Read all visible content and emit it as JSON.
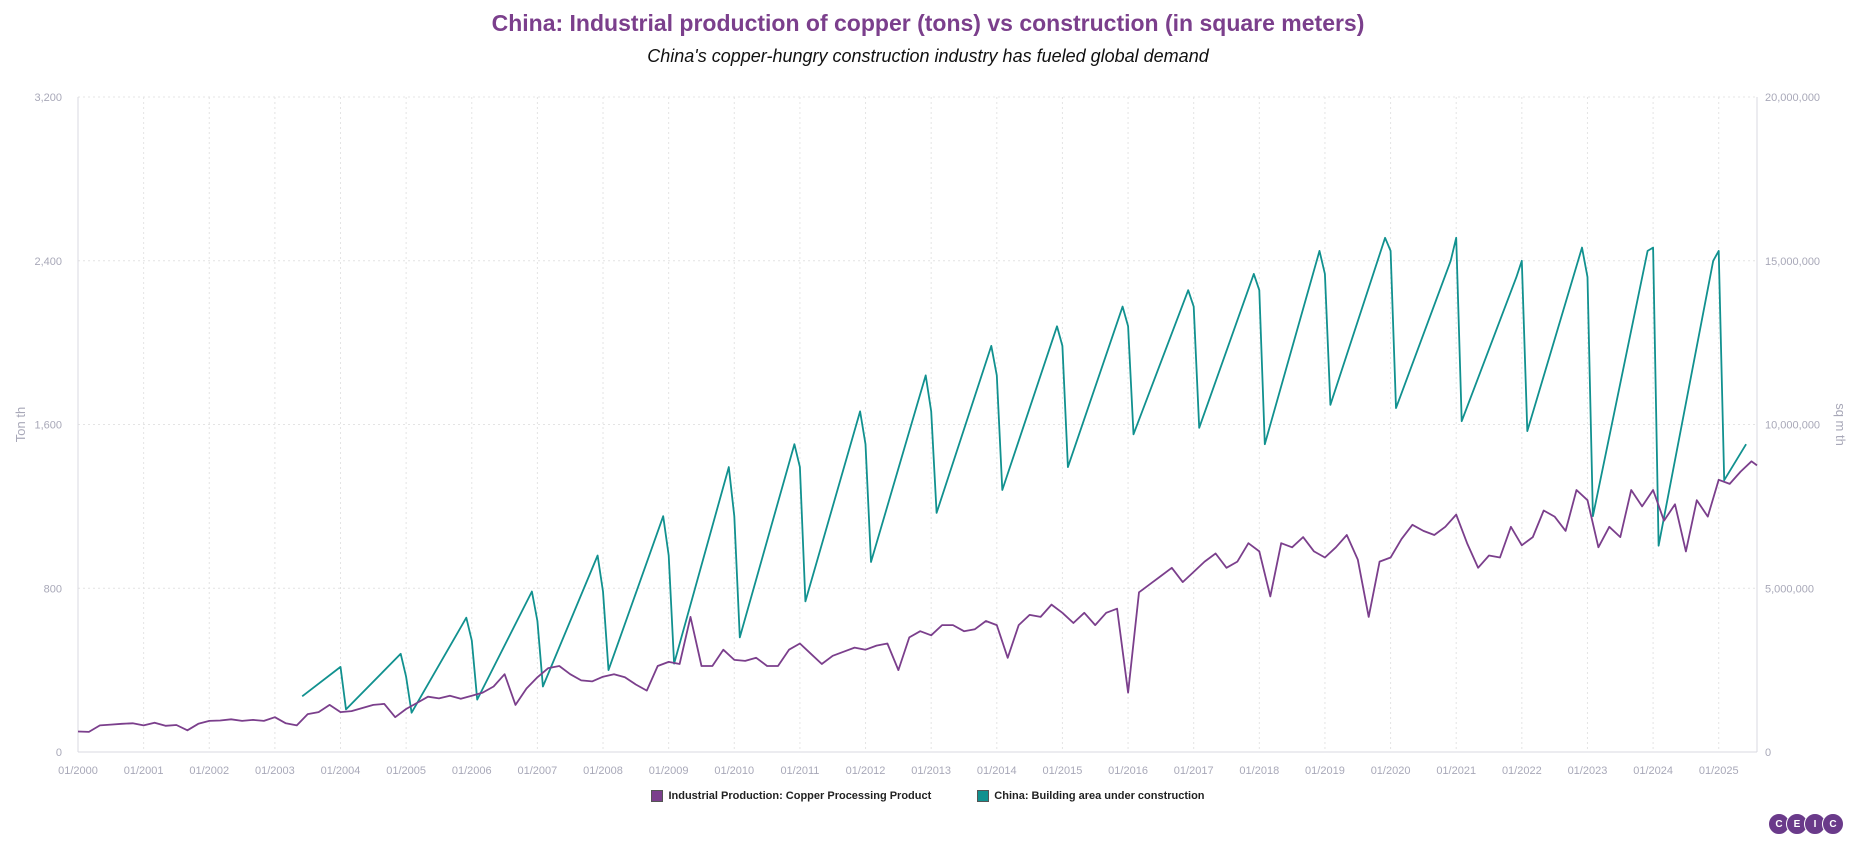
{
  "title": "China: Industrial production of copper (tons) vs construction (in square meters)",
  "subtitle": "China's copper-hungry construction industry has fueled global demand",
  "colors": {
    "copper": "#7b3f8c",
    "construction": "#11918f",
    "grid": "#e4e4e4",
    "axis_text": "#a8a8b8"
  },
  "logo": [
    "C",
    "E",
    "I",
    "C"
  ],
  "chart_data": {
    "type": "line",
    "y_left": {
      "label": "Ton th",
      "ylim": [
        0,
        3200
      ],
      "ticks": [
        "0",
        "800",
        "1,600",
        "2,400",
        "3,200"
      ]
    },
    "y_right": {
      "label": "sq m th",
      "ylim": [
        0,
        20000000
      ],
      "ticks": [
        "0",
        "5,000,000",
        "10,000,000",
        "15,000,000",
        "20,000,000"
      ]
    },
    "x_ticks": [
      "01/2000",
      "01/2001",
      "01/2002",
      "01/2003",
      "01/2004",
      "01/2005",
      "01/2006",
      "01/2007",
      "01/2008",
      "01/2009",
      "01/2010",
      "01/2011",
      "01/2012",
      "01/2013",
      "01/2014",
      "01/2015",
      "01/2016",
      "01/2017",
      "01/2018",
      "01/2019",
      "01/2020",
      "01/2021",
      "01/2022",
      "01/2023",
      "01/2024",
      "01/2025"
    ],
    "x_range": [
      "2000-01",
      "2025-08"
    ],
    "grid": true,
    "legend_position": "bottom-center",
    "series": [
      {
        "name": "Industrial Production: Copper Processing Product",
        "axis": "left",
        "points": [
          [
            "2000-01",
            100
          ],
          [
            "2000-03",
            98
          ],
          [
            "2000-05",
            130
          ],
          [
            "2000-07",
            134
          ],
          [
            "2000-09",
            138
          ],
          [
            "2000-11",
            140
          ],
          [
            "2001-01",
            130
          ],
          [
            "2001-03",
            143
          ],
          [
            "2001-05",
            128
          ],
          [
            "2001-07",
            132
          ],
          [
            "2001-09",
            106
          ],
          [
            "2001-11",
            138
          ],
          [
            "2002-01",
            152
          ],
          [
            "2002-03",
            154
          ],
          [
            "2002-05",
            160
          ],
          [
            "2002-07",
            152
          ],
          [
            "2002-09",
            157
          ],
          [
            "2002-11",
            152
          ],
          [
            "2003-01",
            170
          ],
          [
            "2003-03",
            140
          ],
          [
            "2003-05",
            130
          ],
          [
            "2003-07",
            185
          ],
          [
            "2003-09",
            195
          ],
          [
            "2003-11",
            230
          ],
          [
            "2004-01",
            195
          ],
          [
            "2004-03",
            200
          ],
          [
            "2004-05",
            215
          ],
          [
            "2004-07",
            230
          ],
          [
            "2004-09",
            235
          ],
          [
            "2004-11",
            170
          ],
          [
            "2005-01",
            210
          ],
          [
            "2005-03",
            240
          ],
          [
            "2005-05",
            270
          ],
          [
            "2005-07",
            262
          ],
          [
            "2005-09",
            275
          ],
          [
            "2005-11",
            260
          ],
          [
            "2006-01",
            275
          ],
          [
            "2006-03",
            290
          ],
          [
            "2006-05",
            320
          ],
          [
            "2006-07",
            380
          ],
          [
            "2006-09",
            230
          ],
          [
            "2006-11",
            310
          ],
          [
            "2007-01",
            365
          ],
          [
            "2007-03",
            410
          ],
          [
            "2007-05",
            420
          ],
          [
            "2007-07",
            380
          ],
          [
            "2007-09",
            350
          ],
          [
            "2007-11",
            345
          ],
          [
            "2008-01",
            368
          ],
          [
            "2008-03",
            380
          ],
          [
            "2008-05",
            365
          ],
          [
            "2008-07",
            330
          ],
          [
            "2008-09",
            300
          ],
          [
            "2008-11",
            420
          ],
          [
            "2009-01",
            440
          ],
          [
            "2009-03",
            430
          ],
          [
            "2009-05",
            660
          ],
          [
            "2009-07",
            420
          ],
          [
            "2009-09",
            420
          ],
          [
            "2009-11",
            500
          ],
          [
            "2010-01",
            450
          ],
          [
            "2010-03",
            445
          ],
          [
            "2010-05",
            460
          ],
          [
            "2010-07",
            420
          ],
          [
            "2010-09",
            420
          ],
          [
            "2010-11",
            500
          ],
          [
            "2011-01",
            530
          ],
          [
            "2011-03",
            480
          ],
          [
            "2011-05",
            430
          ],
          [
            "2011-07",
            470
          ],
          [
            "2011-09",
            490
          ],
          [
            "2011-11",
            510
          ],
          [
            "2012-01",
            500
          ],
          [
            "2012-03",
            520
          ],
          [
            "2012-05",
            530
          ],
          [
            "2012-07",
            400
          ],
          [
            "2012-09",
            560
          ],
          [
            "2012-11",
            590
          ],
          [
            "2013-01",
            570
          ],
          [
            "2013-03",
            620
          ],
          [
            "2013-05",
            620
          ],
          [
            "2013-07",
            590
          ],
          [
            "2013-09",
            600
          ],
          [
            "2013-11",
            640
          ],
          [
            "2014-01",
            620
          ],
          [
            "2014-03",
            460
          ],
          [
            "2014-05",
            620
          ],
          [
            "2014-07",
            670
          ],
          [
            "2014-09",
            660
          ],
          [
            "2014-11",
            720
          ],
          [
            "2015-01",
            680
          ],
          [
            "2015-03",
            630
          ],
          [
            "2015-05",
            680
          ],
          [
            "2015-07",
            620
          ],
          [
            "2015-09",
            680
          ],
          [
            "2015-11",
            700
          ],
          [
            "2016-01",
            290
          ],
          [
            "2016-03",
            780
          ],
          [
            "2016-05",
            820
          ],
          [
            "2016-07",
            860
          ],
          [
            "2016-09",
            900
          ],
          [
            "2016-11",
            830
          ],
          [
            "2017-01",
            880
          ],
          [
            "2017-03",
            930
          ],
          [
            "2017-05",
            970
          ],
          [
            "2017-07",
            900
          ],
          [
            "2017-09",
            930
          ],
          [
            "2017-11",
            1020
          ],
          [
            "2018-01",
            980
          ],
          [
            "2018-03",
            760
          ],
          [
            "2018-05",
            1020
          ],
          [
            "2018-07",
            1000
          ],
          [
            "2018-09",
            1050
          ],
          [
            "2018-11",
            980
          ],
          [
            "2019-01",
            950
          ],
          [
            "2019-03",
            1000
          ],
          [
            "2019-05",
            1060
          ],
          [
            "2019-07",
            940
          ],
          [
            "2019-09",
            660
          ],
          [
            "2019-11",
            930
          ],
          [
            "2020-01",
            950
          ],
          [
            "2020-03",
            1040
          ],
          [
            "2020-05",
            1110
          ],
          [
            "2020-07",
            1080
          ],
          [
            "2020-09",
            1060
          ],
          [
            "2020-11",
            1100
          ],
          [
            "2021-01",
            1160
          ],
          [
            "2021-03",
            1020
          ],
          [
            "2021-05",
            900
          ],
          [
            "2021-07",
            960
          ],
          [
            "2021-09",
            950
          ],
          [
            "2021-11",
            1100
          ],
          [
            "2022-01",
            1010
          ],
          [
            "2022-03",
            1050
          ],
          [
            "2022-05",
            1180
          ],
          [
            "2022-07",
            1150
          ],
          [
            "2022-09",
            1080
          ],
          [
            "2022-11",
            1280
          ],
          [
            "2023-01",
            1230
          ],
          [
            "2023-03",
            1000
          ],
          [
            "2023-05",
            1100
          ],
          [
            "2023-07",
            1050
          ],
          [
            "2023-09",
            1280
          ],
          [
            "2023-11",
            1200
          ],
          [
            "2024-01",
            1280
          ],
          [
            "2024-03",
            1130
          ],
          [
            "2024-05",
            1210
          ],
          [
            "2024-07",
            980
          ],
          [
            "2024-09",
            1230
          ],
          [
            "2024-11",
            1150
          ],
          [
            "2025-01",
            1330
          ],
          [
            "2025-03",
            1310
          ],
          [
            "2025-05",
            1370
          ],
          [
            "2025-07",
            1420
          ],
          [
            "2025-08",
            1400
          ]
        ]
      },
      {
        "name": "China: Building area under construction",
        "axis": "right",
        "points": [
          [
            "2003-06",
            1700000
          ],
          [
            "2004-01",
            2600000
          ],
          [
            "2004-02",
            1300000
          ],
          [
            "2004-12",
            3000000
          ],
          [
            "2005-01",
            2300000
          ],
          [
            "2005-02",
            1200000
          ],
          [
            "2005-12",
            4100000
          ],
          [
            "2006-01",
            3400000
          ],
          [
            "2006-02",
            1600000
          ],
          [
            "2006-12",
            4900000
          ],
          [
            "2007-01",
            4000000
          ],
          [
            "2007-02",
            2000000
          ],
          [
            "2007-12",
            6000000
          ],
          [
            "2008-01",
            4900000
          ],
          [
            "2008-02",
            2500000
          ],
          [
            "2008-12",
            7200000
          ],
          [
            "2009-01",
            6000000
          ],
          [
            "2009-02",
            2700000
          ],
          [
            "2009-12",
            8700000
          ],
          [
            "2010-01",
            7200000
          ],
          [
            "2010-02",
            3500000
          ],
          [
            "2010-12",
            9400000
          ],
          [
            "2011-01",
            8700000
          ],
          [
            "2011-02",
            4600000
          ],
          [
            "2011-12",
            10400000
          ],
          [
            "2012-01",
            9400000
          ],
          [
            "2012-02",
            5800000
          ],
          [
            "2012-12",
            11500000
          ],
          [
            "2013-01",
            10400000
          ],
          [
            "2013-02",
            7300000
          ],
          [
            "2013-12",
            12400000
          ],
          [
            "2014-01",
            11500000
          ],
          [
            "2014-02",
            8000000
          ],
          [
            "2014-12",
            13000000
          ],
          [
            "2015-01",
            12400000
          ],
          [
            "2015-02",
            8700000
          ],
          [
            "2015-12",
            13600000
          ],
          [
            "2016-01",
            13000000
          ],
          [
            "2016-02",
            9700000
          ],
          [
            "2016-12",
            14100000
          ],
          [
            "2017-01",
            13600000
          ],
          [
            "2017-02",
            9900000
          ],
          [
            "2017-12",
            14600000
          ],
          [
            "2018-01",
            14100000
          ],
          [
            "2018-02",
            9400000
          ],
          [
            "2018-12",
            15300000
          ],
          [
            "2019-01",
            14600000
          ],
          [
            "2019-02",
            10600000
          ],
          [
            "2019-12",
            15700000
          ],
          [
            "2020-01",
            15300000
          ],
          [
            "2020-02",
            10500000
          ],
          [
            "2020-12",
            15000000
          ],
          [
            "2021-01",
            15700000
          ],
          [
            "2021-02",
            10100000
          ],
          [
            "2021-12",
            14500000
          ],
          [
            "2022-01",
            15000000
          ],
          [
            "2022-02",
            9800000
          ],
          [
            "2022-12",
            15400000
          ],
          [
            "2023-01",
            14500000
          ],
          [
            "2023-02",
            7200000
          ],
          [
            "2023-12",
            15300000
          ],
          [
            "2024-01",
            15400000
          ],
          [
            "2024-02",
            6300000
          ],
          [
            "2024-12",
            15000000
          ],
          [
            "2025-01",
            15300000
          ],
          [
            "2025-02",
            8300000
          ],
          [
            "2025-06",
            9400000
          ]
        ]
      }
    ]
  }
}
